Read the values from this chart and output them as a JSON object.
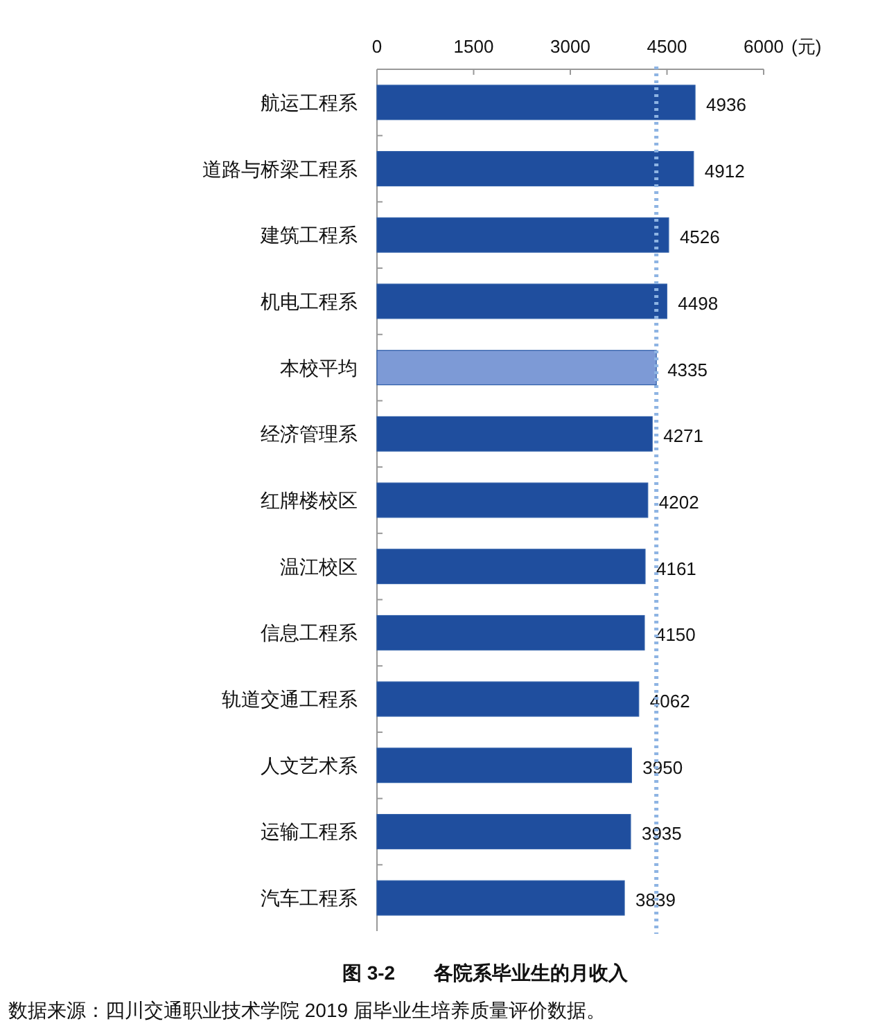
{
  "chart_data": {
    "type": "bar",
    "orientation": "horizontal",
    "title": "图 3-2　　各院系毕业生的月收入",
    "xlabel": "(元)",
    "categories": [
      "航运工程系",
      "道路与桥梁工程系",
      "建筑工程系",
      "机电工程系",
      "本校平均",
      "经济管理系",
      "红牌楼校区",
      "温江校区",
      "信息工程系",
      "轨道交通工程系",
      "人文艺术系",
      "运输工程系",
      "汽车工程系"
    ],
    "values": [
      4936,
      4912,
      4526,
      4498,
      4335,
      4271,
      4202,
      4161,
      4150,
      4062,
      3950,
      3935,
      3839
    ],
    "colors": [
      "#1f4e9e",
      "#1f4e9e",
      "#1f4e9e",
      "#1f4e9e",
      "#7d9ad6",
      "#1f4e9e",
      "#1f4e9e",
      "#1f4e9e",
      "#1f4e9e",
      "#1f4e9e",
      "#1f4e9e",
      "#1f4e9e",
      "#1f4e9e"
    ],
    "xlim": [
      0,
      6000
    ],
    "xticks": [
      0,
      1500,
      3000,
      4500,
      6000
    ],
    "data_labels": true,
    "ref_lines": [
      {
        "axis": "x",
        "value": 4335,
        "color": "#8eb4e3",
        "line_style": "dotted"
      }
    ],
    "annotations": [
      "数据来源：四川交通职业技术学院 2019 届毕业生培养质量评价数据。"
    ]
  }
}
